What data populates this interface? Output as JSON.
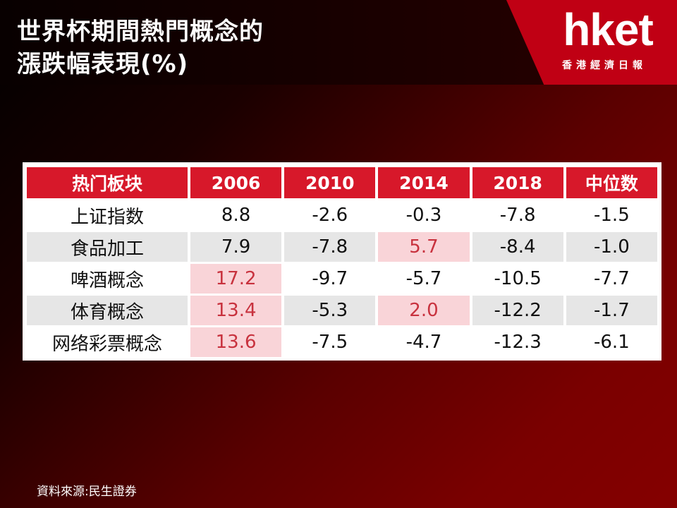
{
  "title": {
    "line1": "世界杯期間熱門概念的",
    "line2": "漲跌幅表現(%)"
  },
  "logo": {
    "text": "hket",
    "subtitle": "香港經濟日報"
  },
  "source": "資料來源:民生證券",
  "colors": {
    "header_bg": "#d7182a",
    "highlight_bg": "#f9d4d8",
    "highlight_text": "#c8323e",
    "logo_bg": "#c00014"
  },
  "chart_data": {
    "type": "table",
    "columns": [
      "热门板块",
      "2006",
      "2010",
      "2014",
      "2018",
      "中位数"
    ],
    "rows": [
      {
        "label": "上证指数",
        "values": [
          "8.8",
          "-2.6",
          "-0.3",
          "-7.8",
          "-1.5"
        ],
        "highlight": [
          false,
          false,
          false,
          false,
          false
        ]
      },
      {
        "label": "食品加工",
        "values": [
          "7.9",
          "-7.8",
          "5.7",
          "-8.4",
          "-1.0"
        ],
        "highlight": [
          false,
          false,
          true,
          false,
          false
        ]
      },
      {
        "label": "啤酒概念",
        "values": [
          "17.2",
          "-9.7",
          "-5.7",
          "-10.5",
          "-7.7"
        ],
        "highlight": [
          true,
          false,
          false,
          false,
          false
        ]
      },
      {
        "label": "体育概念",
        "values": [
          "13.4",
          "-5.3",
          "2.0",
          "-12.2",
          "-1.7"
        ],
        "highlight": [
          true,
          false,
          true,
          false,
          false
        ]
      },
      {
        "label": "网络彩票概念",
        "values": [
          "13.6",
          "-7.5",
          "-4.7",
          "-12.3",
          "-6.1"
        ],
        "highlight": [
          true,
          false,
          false,
          false,
          false
        ]
      }
    ]
  }
}
